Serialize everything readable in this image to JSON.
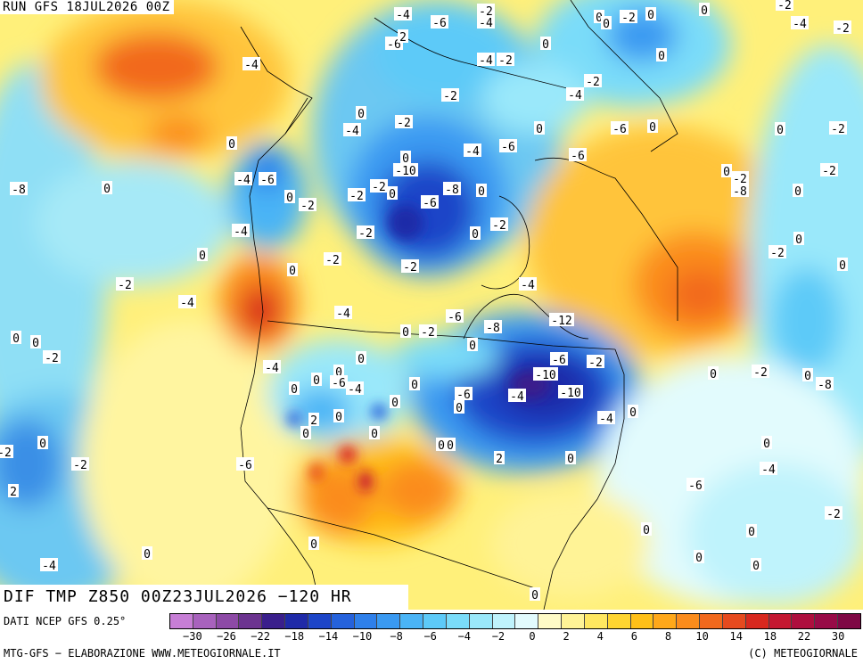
{
  "run_label": "RUN GFS 18JUL2026 00Z",
  "chart_title": "DIF TMP Z850 00Z23JUL2026 −120 HR",
  "data_source": "DATI NCEP GFS 0.25°",
  "credit_left": "MTG-GFS − ELABORAZIONE WWW.METEOGIORNALE.IT",
  "credit_right": "(C) METEOGIORNALE",
  "colorbar": {
    "colors": [
      "#c77ed6",
      "#a862bd",
      "#8d4aa6",
      "#6c3490",
      "#3a1f8c",
      "#1f2aa8",
      "#1d45c8",
      "#2562dc",
      "#2f80ea",
      "#3a9af2",
      "#4ab4f6",
      "#5dcaf8",
      "#7adcf9",
      "#9ae8fa",
      "#bff3fc",
      "#e2fbfd",
      "#fffbc6",
      "#fff396",
      "#ffe760",
      "#ffd531",
      "#ffc018",
      "#ffa81a",
      "#fb8c1c",
      "#f2691d",
      "#e64a1e",
      "#d8281e",
      "#c41731",
      "#ae0f3e",
      "#980b47",
      "#7f0845"
    ],
    "tick_labels": [
      "−30",
      "−26",
      "−22",
      "−18",
      "−14",
      "−10",
      "−8",
      "−6",
      "−4",
      "−2",
      "0",
      "2",
      "4",
      "6",
      "8",
      "10",
      "14",
      "18",
      "22",
      "30"
    ]
  },
  "contour_labels": [
    "-4",
    "-6",
    "-2",
    "-4",
    "-6",
    "-4",
    "0",
    "2",
    "0",
    "-2",
    "0",
    "0",
    "-4",
    "-2",
    "0",
    "-2",
    "-4",
    "-2",
    "0",
    "-2",
    "-4",
    "0",
    "-6",
    "0",
    "0",
    "-6",
    "-4",
    "0",
    "-10",
    "-6",
    "0",
    "-2",
    "-8",
    "-6",
    "-8",
    "0",
    "-2",
    "0",
    "-2",
    "0",
    "-2",
    "-4",
    "-6",
    "-8",
    "0",
    "-2",
    "-2",
    "-4",
    "0",
    "-2",
    "0",
    "-4",
    "-2",
    "0",
    "-2",
    "-2",
    "-2",
    "0",
    "0",
    "-2",
    "0",
    "0",
    "-2",
    "-4",
    "-2",
    "0",
    "-4",
    "-6",
    "-8",
    "-4",
    "-12",
    "0",
    "-2",
    "0",
    "-6",
    "-2",
    "-10",
    "-10",
    "-4",
    "0",
    "-2",
    "0",
    "-8",
    "-6",
    "0",
    "0",
    "-4",
    "0",
    "0",
    "0",
    "-6",
    "-4",
    "0",
    "0",
    "0",
    "2",
    "0",
    "0",
    "0",
    "0",
    "2",
    "0",
    "-4",
    "0",
    "0",
    "-6",
    "-4",
    "-2",
    "0",
    "0",
    "0",
    "0",
    "0",
    "0",
    "-2",
    "0",
    "-2",
    "-2",
    "-6",
    "2",
    "0",
    "-4",
    "0",
    "0"
  ]
}
